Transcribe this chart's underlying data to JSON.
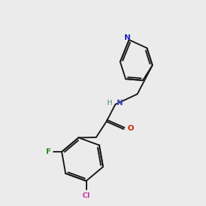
{
  "bg_color": "#ebebeb",
  "bond_color": "#1a1a1a",
  "bond_width": 1.5,
  "N_color": "#4444cc",
  "O_color": "#cc2200",
  "F_color": "#228822",
  "Cl_color": "#cc44aa",
  "H_color": "#558888",
  "pyridine_N_color": "#2222bb",
  "atoms": {
    "N_label": "N",
    "O_label": "O",
    "F_label": "F",
    "Cl_label": "Cl",
    "H_label": "H"
  }
}
